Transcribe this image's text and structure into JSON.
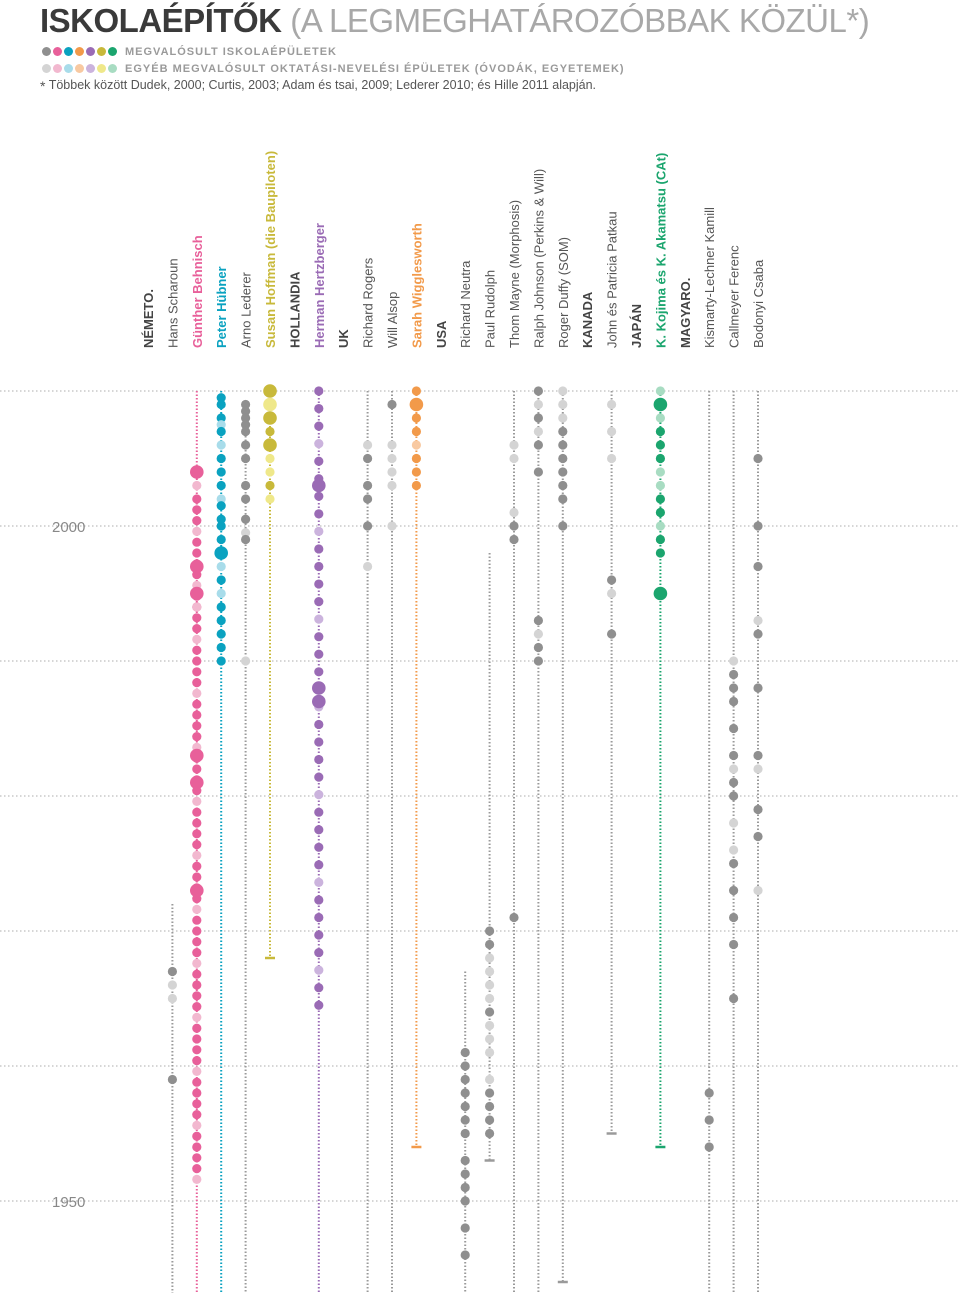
{
  "header": {
    "title_strong": "ISKOLAÉPÍTŐK",
    "title_rest": " (A LEGMEGHATÁROZÓBBAK KÖZÜL*)",
    "legend": [
      {
        "label": "MEGVALÓSULT ISKOLAÉPÜLETEK",
        "colors": [
          "#8f8f8f",
          "#e8609a",
          "#0aa2c0",
          "#f29a4a",
          "#9a6bb5",
          "#c8b93a",
          "#1ba56e"
        ]
      },
      {
        "label": "EGYÉB MEGVALÓSULT OKTATÁSI-NEVELÉSI ÉPÜLETEK (ÓVODÁK, EGYETEMEK)",
        "colors": [
          "#d4d4d4",
          "#f2b8cf",
          "#a8dcea",
          "#f8c9a1",
          "#cbb3dd",
          "#efe88a",
          "#a8dcc2"
        ]
      }
    ],
    "source_star": "*",
    "source": " Többek között Dudek, 2000; Curtis, 2003; Adam és tsai, 2009; Lederer 2010; és Hille 2011 alapján."
  },
  "chart_data": {
    "type": "scatter",
    "title": "ISKOLAÉPÍTŐK (A LEGMEGHATÁROZÓBBAK KÖZÜL*)",
    "y_axis": {
      "labels": [
        "2000",
        "1950"
      ],
      "range": [
        1925,
        2013
      ],
      "direction": "newer-at-top",
      "gridlines_every_years": 10
    },
    "colors": {
      "gray": "#8f8f8f",
      "gray_light": "#d4d4d4",
      "pink": "#e8609a",
      "teal": "#0aa2c0",
      "olive": "#c8b93a",
      "purple": "#9a6bb5",
      "orange": "#f29a4a",
      "green": "#1ba56e"
    },
    "columns": [
      {
        "label": "NÉMETO.",
        "kind": "country"
      },
      {
        "label": "Hans Scharoun",
        "kind": "architect",
        "color": "gray",
        "span": [
          1926,
          1972
        ],
        "points": [
          [
            1967,
            1,
            0
          ],
          [
            1966,
            1,
            1
          ],
          [
            1965,
            1,
            1
          ],
          [
            1959,
            1,
            0
          ]
        ]
      },
      {
        "label": "Günther Behnisch",
        "kind": "architect",
        "color": "pink",
        "span": [
          1925,
          2010
        ],
        "dense": [
          1951,
          2002,
          0.8
        ],
        "points": [
          [
            2004,
            2,
            0
          ],
          [
            2003,
            1,
            1
          ],
          [
            1997,
            2,
            0
          ],
          [
            1995,
            2,
            0
          ],
          [
            1994,
            1,
            1
          ],
          [
            1983,
            2,
            0
          ],
          [
            1981,
            2,
            0
          ],
          [
            1973,
            2,
            0
          ]
        ]
      },
      {
        "label": "Peter Hübner",
        "kind": "architect",
        "color": "teal",
        "span": [
          1925,
          2010
        ],
        "points": [
          [
            2009.5,
            1,
            0
          ],
          [
            2009,
            1,
            0
          ],
          [
            2008,
            1,
            0
          ],
          [
            2007.5,
            1,
            1
          ],
          [
            2007,
            1,
            0
          ],
          [
            2006,
            1,
            1
          ],
          [
            2005,
            1,
            0
          ],
          [
            2004,
            1,
            0
          ],
          [
            2003,
            1,
            0
          ],
          [
            2002,
            1,
            1
          ],
          [
            2001.5,
            1,
            0
          ],
          [
            2000.5,
            1,
            0
          ],
          [
            2000,
            1,
            0
          ],
          [
            1999,
            1,
            0
          ],
          [
            1998,
            2,
            0
          ],
          [
            1997,
            1,
            1
          ],
          [
            1996,
            1,
            0
          ],
          [
            1995,
            1,
            1
          ],
          [
            1994,
            1,
            0
          ],
          [
            1993,
            1,
            0
          ],
          [
            1992,
            1,
            0
          ],
          [
            1991,
            1,
            0
          ],
          [
            1990,
            1,
            0
          ]
        ]
      },
      {
        "label": "Arno Lederer",
        "kind": "architect",
        "color": "gray",
        "span": [
          1928,
          2009
        ],
        "points": [
          [
            2009,
            1,
            0
          ],
          [
            2008.5,
            1,
            0
          ],
          [
            2008,
            1,
            0
          ],
          [
            2007.5,
            1,
            0
          ],
          [
            2007,
            1,
            0
          ],
          [
            2006,
            1,
            0
          ],
          [
            2005,
            1,
            0
          ],
          [
            2003,
            1,
            0
          ],
          [
            2002,
            1,
            0
          ],
          [
            2000.5,
            1,
            0
          ],
          [
            1999.5,
            1,
            1
          ],
          [
            1999,
            1,
            0
          ],
          [
            1990,
            1,
            1
          ]
        ]
      },
      {
        "label": "Susan Hoffman (die Baupiloten)",
        "kind": "architect",
        "color": "olive",
        "span": [
          1968,
          2010
        ],
        "points": [
          [
            2010,
            2,
            0
          ],
          [
            2009,
            2,
            1
          ],
          [
            2008,
            2,
            0
          ],
          [
            2007,
            1,
            0
          ],
          [
            2006,
            2,
            0
          ],
          [
            2005,
            1,
            1
          ],
          [
            2004,
            1,
            1
          ],
          [
            2003,
            1,
            0
          ],
          [
            2002,
            1,
            1
          ]
        ]
      },
      {
        "label": "HOLLANDIA",
        "kind": "country"
      },
      {
        "label": "Herman Hertzberger",
        "kind": "architect",
        "color": "purple",
        "span": [
          1925,
          2010
        ],
        "dense": [
          1964,
          2010,
          1.3
        ],
        "points": [
          [
            2003,
            2,
            0
          ],
          [
            1988,
            2,
            0
          ],
          [
            1987,
            2,
            0
          ]
        ]
      },
      {
        "label": "UK",
        "kind": "country"
      },
      {
        "label": "Richard Rogers",
        "kind": "architect",
        "color": "gray",
        "span": [
          1928,
          2010
        ],
        "points": [
          [
            2006,
            1,
            1
          ],
          [
            2005,
            1,
            0
          ],
          [
            2003,
            1,
            0
          ],
          [
            2002,
            1,
            0
          ],
          [
            2000,
            1,
            0
          ],
          [
            1997,
            1,
            1
          ]
        ]
      },
      {
        "label": "Will Alsop",
        "kind": "architect",
        "color": "gray",
        "span": [
          1928,
          2010
        ],
        "points": [
          [
            2009,
            1,
            0
          ],
          [
            2006,
            1,
            1
          ],
          [
            2005,
            1,
            1
          ],
          [
            2004,
            1,
            1
          ],
          [
            2003,
            1,
            1
          ],
          [
            2000,
            1,
            1
          ]
        ]
      },
      {
        "label": "Sarah Wigglesworth",
        "kind": "architect",
        "color": "orange",
        "span": [
          1954,
          2010
        ],
        "points": [
          [
            2010,
            1,
            0
          ],
          [
            2009,
            2,
            0
          ],
          [
            2008,
            1,
            0
          ],
          [
            2007,
            1,
            0
          ],
          [
            2006,
            1,
            1
          ],
          [
            2005,
            1,
            0
          ],
          [
            2004,
            1,
            0
          ],
          [
            2003,
            1,
            0
          ]
        ]
      },
      {
        "label": "USA",
        "kind": "country"
      },
      {
        "label": "Richard Neutra",
        "kind": "architect",
        "color": "gray",
        "span": [
          1925,
          1967
        ],
        "points": [
          [
            1961,
            1,
            0
          ],
          [
            1960,
            1,
            0
          ],
          [
            1959,
            1,
            0
          ],
          [
            1958,
            1,
            0
          ],
          [
            1957,
            1,
            0
          ],
          [
            1956,
            1,
            0
          ],
          [
            1955,
            1,
            0
          ],
          [
            1953,
            1,
            0
          ],
          [
            1952,
            1,
            0
          ],
          [
            1951,
            1,
            0
          ],
          [
            1950,
            1,
            0
          ],
          [
            1948,
            1,
            0
          ],
          [
            1946,
            1,
            0
          ]
        ]
      },
      {
        "label": "Paul Rudolph",
        "kind": "architect",
        "color": "gray",
        "span": [
          1953,
          1998
        ],
        "points": [
          [
            1970,
            1,
            0
          ],
          [
            1969,
            1,
            0
          ],
          [
            1968,
            1,
            1
          ],
          [
            1967,
            1,
            1
          ],
          [
            1966,
            1,
            1
          ],
          [
            1965,
            1,
            1
          ],
          [
            1964,
            1,
            0
          ],
          [
            1963,
            1,
            1
          ],
          [
            1962,
            1,
            1
          ],
          [
            1961,
            1,
            1
          ],
          [
            1959,
            1,
            1
          ],
          [
            1958,
            1,
            0
          ],
          [
            1957,
            1,
            0
          ],
          [
            1956,
            1,
            0
          ],
          [
            1955,
            1,
            0
          ]
        ]
      },
      {
        "label": "Thom Mayne (Morphosis)",
        "kind": "architect",
        "color": "gray",
        "span": [
          1930,
          2010
        ],
        "points": [
          [
            2006,
            1,
            1
          ],
          [
            2005,
            1,
            1
          ],
          [
            2001,
            1,
            1
          ],
          [
            2000,
            1,
            0
          ],
          [
            1999,
            1,
            0
          ],
          [
            1971,
            1,
            0
          ]
        ]
      },
      {
        "label": "Ralph Johnson (Perkins & Will)",
        "kind": "architect",
        "color": "gray",
        "span": [
          1929,
          2010
        ],
        "points": [
          [
            2010,
            1,
            0
          ],
          [
            2009,
            1,
            1
          ],
          [
            2008,
            1,
            0
          ],
          [
            2007,
            1,
            1
          ],
          [
            2006,
            1,
            0
          ],
          [
            2004,
            1,
            0
          ],
          [
            1993,
            1,
            0
          ],
          [
            1992,
            1,
            1
          ],
          [
            1991,
            1,
            0
          ],
          [
            1990,
            1,
            0
          ]
        ]
      },
      {
        "label": "Roger Duffy (SOM)",
        "kind": "architect",
        "color": "gray",
        "span": [
          1944,
          2010
        ],
        "points": [
          [
            2010,
            1,
            1
          ],
          [
            2009,
            1,
            1
          ],
          [
            2008,
            1,
            1
          ],
          [
            2007,
            1,
            0
          ],
          [
            2006,
            1,
            0
          ],
          [
            2005,
            1,
            0
          ],
          [
            2004,
            1,
            0
          ],
          [
            2003,
            1,
            0
          ],
          [
            2002,
            1,
            0
          ],
          [
            2000,
            1,
            0
          ]
        ]
      },
      {
        "label": "KANADA",
        "kind": "country"
      },
      {
        "label": "John és Patricia Patkau",
        "kind": "architect",
        "color": "gray",
        "span": [
          1955,
          2010
        ],
        "points": [
          [
            2009,
            1,
            1
          ],
          [
            2007,
            1,
            1
          ],
          [
            2005,
            1,
            1
          ],
          [
            1996,
            1,
            0
          ],
          [
            1995,
            1,
            1
          ],
          [
            1992,
            1,
            0
          ]
        ]
      },
      {
        "label": "JAPÁN",
        "kind": "country"
      },
      {
        "label": "K. Kojima és K. Akamatsu (CAt)",
        "kind": "architect",
        "color": "green",
        "span": [
          1954,
          2010
        ],
        "points": [
          [
            2010,
            1,
            1
          ],
          [
            2009,
            2,
            0
          ],
          [
            2008,
            1,
            1
          ],
          [
            2007,
            1,
            0
          ],
          [
            2006,
            1,
            0
          ],
          [
            2005,
            1,
            0
          ],
          [
            2004,
            1,
            1
          ],
          [
            2003,
            1,
            1
          ],
          [
            2002,
            1,
            0
          ],
          [
            2001,
            1,
            0
          ],
          [
            2000,
            1,
            1
          ],
          [
            1999,
            1,
            0
          ],
          [
            1998,
            1,
            0
          ],
          [
            1995,
            2,
            0
          ]
        ]
      },
      {
        "label": "MAGYARO.",
        "kind": "country"
      },
      {
        "label": "Kismarty-Lechner Kamill",
        "kind": "architect",
        "color": "gray",
        "span": [
          1925,
          2010
        ],
        "points": [
          [
            1958,
            1,
            0
          ],
          [
            1956,
            1,
            0
          ],
          [
            1954,
            1,
            0
          ]
        ]
      },
      {
        "label": "Callmeyer Ferenc",
        "kind": "architect",
        "color": "gray",
        "span": [
          1925,
          2010
        ],
        "points": [
          [
            1990,
            1,
            1
          ],
          [
            1989,
            1,
            0
          ],
          [
            1988,
            1,
            0
          ],
          [
            1987,
            1,
            0
          ],
          [
            1985,
            1,
            0
          ],
          [
            1983,
            1,
            0
          ],
          [
            1982,
            1,
            1
          ],
          [
            1981,
            1,
            0
          ],
          [
            1980,
            1,
            0
          ],
          [
            1978,
            1,
            1
          ],
          [
            1976,
            1,
            1
          ],
          [
            1975,
            1,
            0
          ],
          [
            1973,
            1,
            0
          ],
          [
            1971,
            1,
            0
          ],
          [
            1969,
            1,
            0
          ],
          [
            1965,
            1,
            0
          ]
        ]
      },
      {
        "label": "Bodonyi Csaba",
        "kind": "architect",
        "color": "gray",
        "span": [
          1929,
          2010
        ],
        "points": [
          [
            2005,
            1,
            0
          ],
          [
            2000,
            1,
            0
          ],
          [
            1997,
            1,
            0
          ],
          [
            1993,
            1,
            1
          ],
          [
            1992,
            1,
            0
          ],
          [
            1988,
            1,
            0
          ],
          [
            1983,
            1,
            0
          ],
          [
            1982,
            1,
            1
          ],
          [
            1979,
            1,
            0
          ],
          [
            1977,
            1,
            0
          ],
          [
            1973,
            1,
            1
          ]
        ]
      }
    ]
  }
}
